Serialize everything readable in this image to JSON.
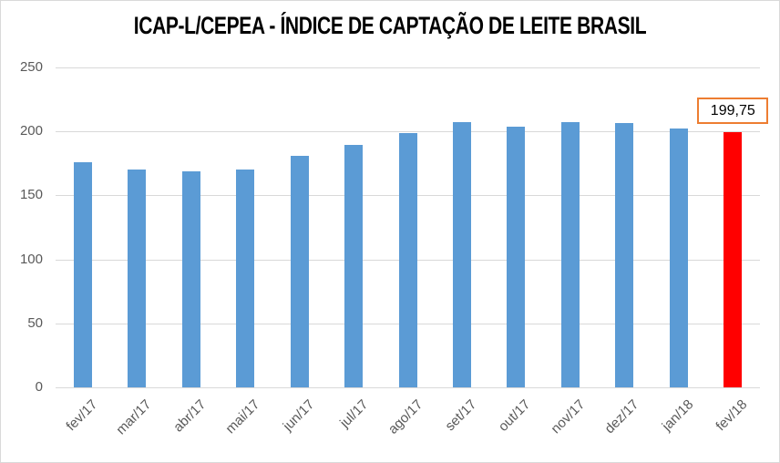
{
  "chart_data": {
    "type": "bar",
    "title": "ICAP-L/CEPEA - ÍNDICE DE CAPTAÇÃO DE LEITE BRASIL",
    "categories": [
      "fev/17",
      "mar/17",
      "abr/17",
      "mai/17",
      "jun/17",
      "jul/17",
      "ago/17",
      "set/17",
      "out/17",
      "nov/17",
      "dez/17",
      "jan/18",
      "fev/18"
    ],
    "values": [
      176,
      170,
      168.5,
      170,
      181,
      189.5,
      199,
      207.5,
      203.5,
      207,
      206.5,
      202.5,
      199.75
    ],
    "xlabel": "",
    "ylabel": "",
    "ylim": [
      0,
      250
    ],
    "yticks": [
      0,
      50,
      100,
      150,
      200,
      250
    ],
    "grid": true,
    "legend": false,
    "bar_color": "#5b9bd5",
    "highlight_index": 12,
    "highlight_color": "#ff0000",
    "data_label": {
      "text": "199,75",
      "border_color": "#ed7d31",
      "fill": "#ffffff"
    },
    "colors": {
      "gridline": "#d9d9d9",
      "tick_text": "#595959",
      "title_text": "#000000",
      "chart_border": "#d9d9d9"
    }
  }
}
